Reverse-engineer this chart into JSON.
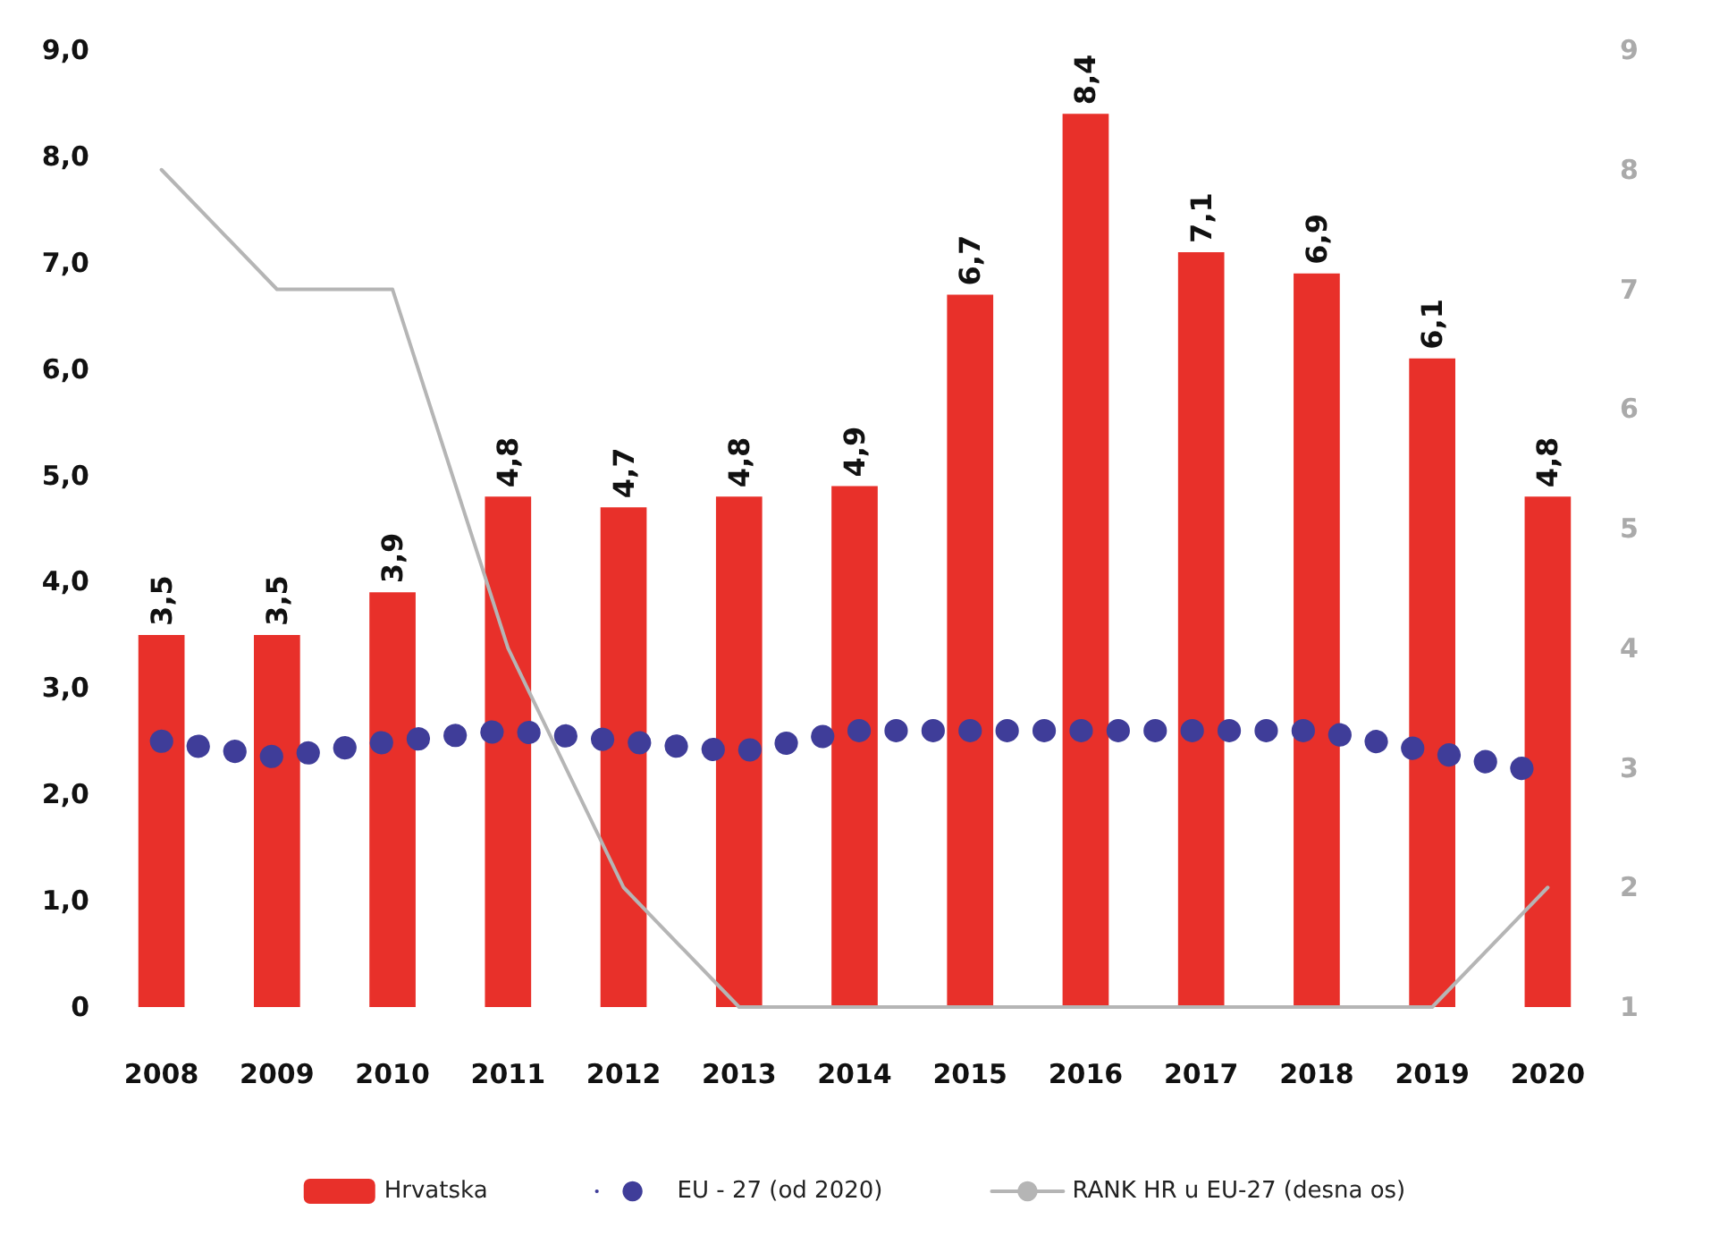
{
  "chart_data": {
    "type": "bar",
    "categories": [
      "2008",
      "2009",
      "2010",
      "2011",
      "2012",
      "2013",
      "2014",
      "2015",
      "2016",
      "2017",
      "2018",
      "2019",
      "2020"
    ],
    "series": [
      {
        "name": "Hrvatska",
        "color": "#e8302a",
        "values": [
          3.5,
          3.5,
          3.9,
          4.8,
          4.7,
          4.8,
          4.9,
          6.7,
          8.4,
          7.1,
          6.9,
          6.1,
          4.8
        ],
        "value_labels": [
          "3,5",
          "3,5",
          "3,9",
          "4,8",
          "4,7",
          "4,8",
          "4,9",
          "6,7",
          "8,4",
          "7,1",
          "6,9",
          "6,1",
          "4,8"
        ]
      },
      {
        "name": "EU - 27 (od 2020)",
        "type": "line",
        "line_style": "dotted",
        "color": "#3f3d99",
        "values": [
          2.5,
          2.35,
          2.5,
          2.6,
          2.5,
          2.4,
          2.6,
          2.6,
          2.6,
          2.6,
          2.6,
          2.4,
          2.2
        ]
      },
      {
        "name": "RANK HR u EU-27 (desna os)",
        "type": "line",
        "line_style": "solid",
        "axis": "y2",
        "color": "#b5b5b5",
        "values": [
          8,
          7,
          7,
          4,
          2,
          1,
          1,
          1,
          1,
          1,
          1,
          1,
          2
        ]
      }
    ],
    "ylim": [
      0,
      9
    ],
    "yticks": [
      {
        "value": 0,
        "label": "0"
      },
      {
        "value": 1,
        "label": "1,0"
      },
      {
        "value": 2,
        "label": "2,0"
      },
      {
        "value": 3,
        "label": "3,0"
      },
      {
        "value": 4,
        "label": "4,0"
      },
      {
        "value": 5,
        "label": "5,0"
      },
      {
        "value": 6,
        "label": "6,0"
      },
      {
        "value": 7,
        "label": "7,0"
      },
      {
        "value": 8,
        "label": "8,0"
      },
      {
        "value": 9,
        "label": "9,0"
      }
    ],
    "y2lim": [
      1,
      9
    ],
    "y2ticks": [
      1,
      2,
      3,
      4,
      5,
      6,
      7,
      8,
      9
    ],
    "grid": false,
    "legend": "bottom",
    "marker": "none"
  }
}
